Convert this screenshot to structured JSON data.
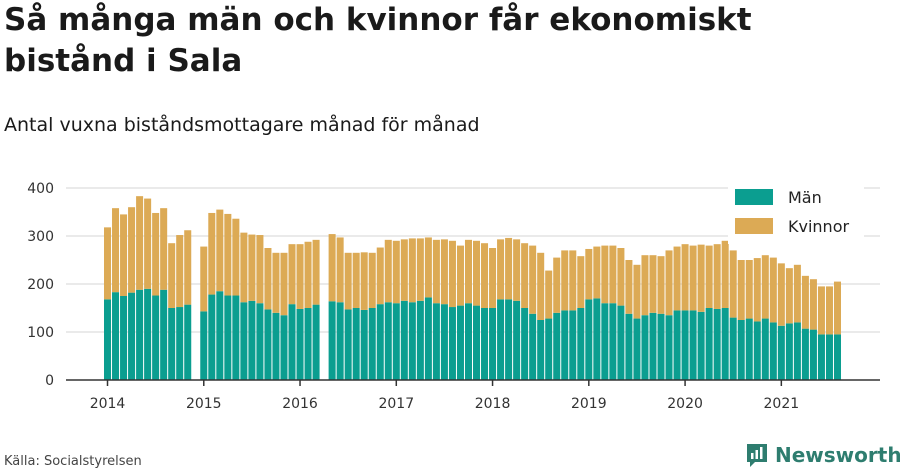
{
  "title": "Så många män och kvinnor får ekonomiskt bistånd i Sala",
  "subtitle": "Antal vuxna biståndsmottagare månad för månad",
  "source": "Källa: Socialstyrelsen",
  "brand": {
    "name": "Newsworthy",
    "icon": "newsworthy-logo-icon"
  },
  "colors": {
    "men": "#0b9e90",
    "women": "#dcaa55",
    "grid": "#e3e3e3",
    "axis": "#333333"
  },
  "chart_data": {
    "type": "bar",
    "stacked": true,
    "start": "2014-01",
    "x_tick_labels": [
      "2014",
      "2015",
      "2016",
      "2017",
      "2018",
      "2019",
      "2020",
      "2021"
    ],
    "y_ticks": [
      0,
      100,
      200,
      300,
      400
    ],
    "ylim": [
      0,
      400
    ],
    "grid": true,
    "legend_position": "top-right",
    "series": [
      {
        "name": "Män",
        "color": "#0b9e90",
        "values": [
          168,
          183,
          175,
          182,
          188,
          190,
          176,
          188,
          150,
          152,
          157,
          null,
          143,
          178,
          185,
          176,
          176,
          162,
          165,
          160,
          147,
          140,
          135,
          158,
          148,
          150,
          157,
          null,
          164,
          162,
          147,
          150,
          146,
          150,
          158,
          162,
          160,
          165,
          162,
          165,
          172,
          160,
          158,
          152,
          155,
          160,
          155,
          150,
          150,
          168,
          168,
          165,
          150,
          138,
          125,
          128,
          140,
          145,
          145,
          150,
          168,
          170,
          160,
          160,
          155,
          138,
          128,
          135,
          140,
          138,
          135,
          145,
          145,
          145,
          142,
          150,
          148,
          150,
          130,
          125,
          128,
          122,
          128,
          120,
          113,
          118,
          120,
          107,
          105,
          95,
          95,
          95
        ]
      },
      {
        "name": "Kvinnor",
        "color": "#dcaa55",
        "values": [
          150,
          175,
          170,
          178,
          195,
          188,
          172,
          170,
          135,
          150,
          155,
          null,
          135,
          170,
          170,
          170,
          160,
          145,
          138,
          142,
          128,
          125,
          130,
          125,
          135,
          138,
          135,
          null,
          140,
          135,
          118,
          115,
          120,
          115,
          118,
          130,
          130,
          128,
          133,
          130,
          125,
          132,
          135,
          138,
          125,
          132,
          135,
          135,
          125,
          125,
          128,
          128,
          135,
          142,
          140,
          100,
          115,
          125,
          125,
          108,
          105,
          108,
          120,
          120,
          120,
          112,
          112,
          125,
          120,
          120,
          135,
          133,
          138,
          135,
          140,
          130,
          135,
          140,
          140,
          125,
          122,
          132,
          132,
          135,
          130,
          115,
          120,
          110,
          105,
          100,
          100,
          110
        ]
      }
    ]
  }
}
